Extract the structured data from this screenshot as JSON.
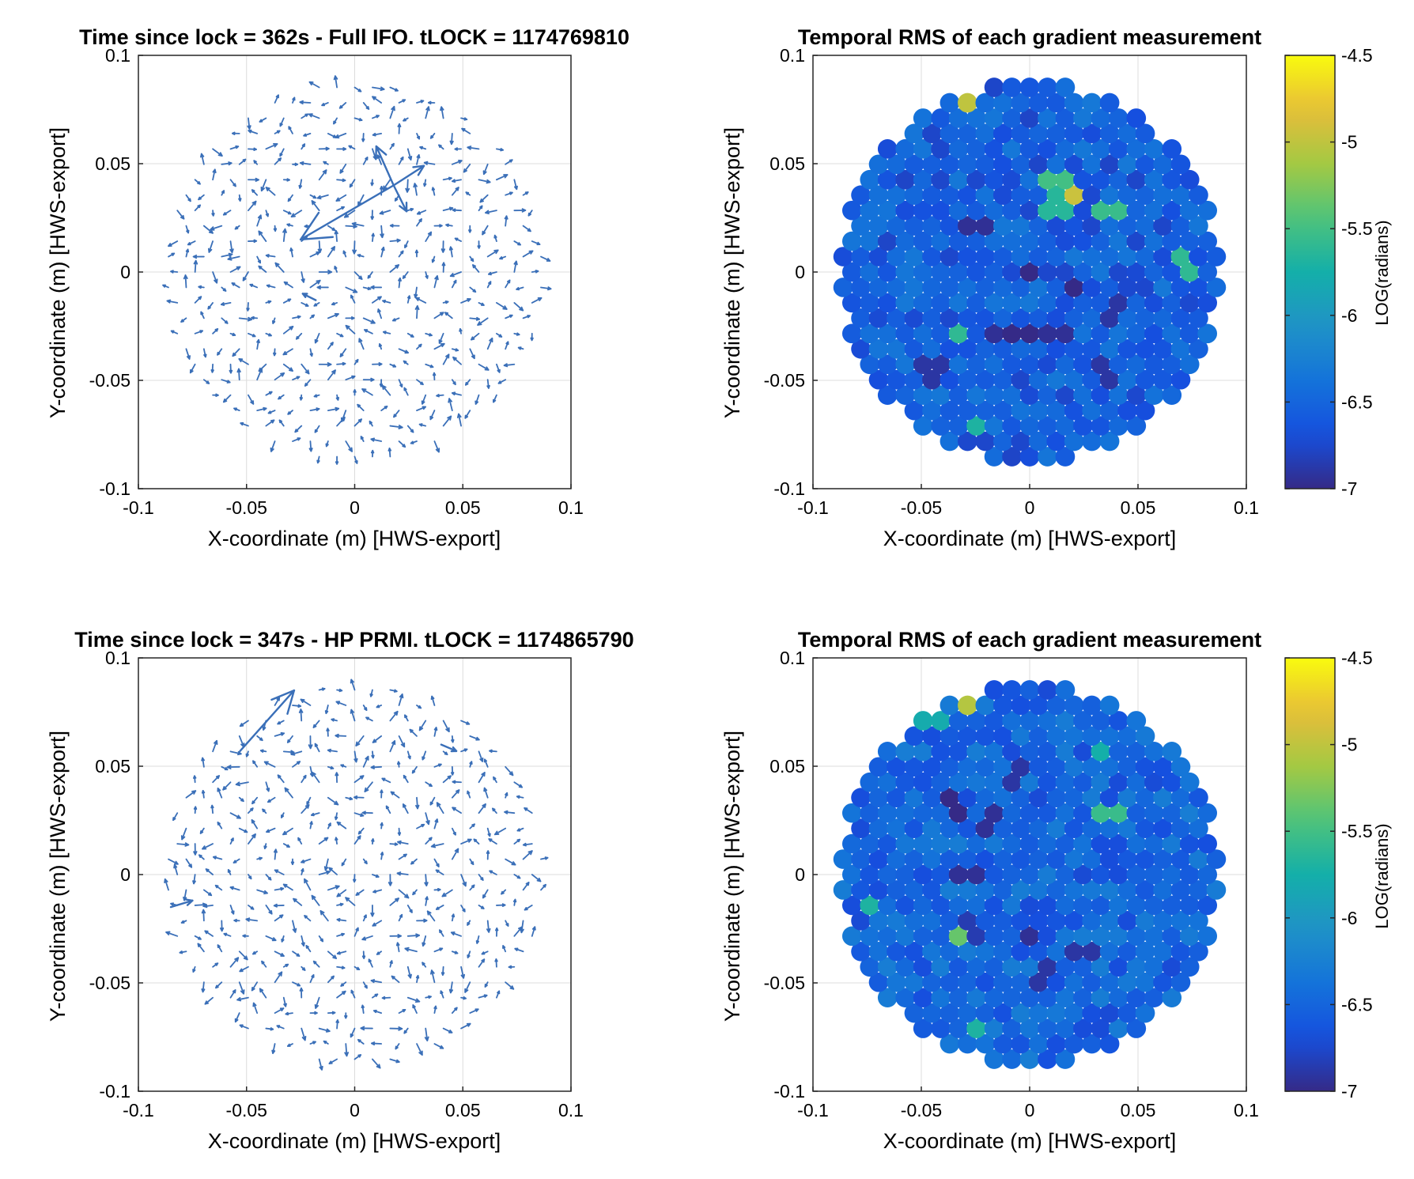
{
  "chart_data": [
    {
      "type": "quiver",
      "title": "Time since lock = 362s -  Full IFO. tLOCK = 1174769810",
      "xlabel": "X-coordinate (m) [HWS-export]",
      "ylabel": "Y-coordinate (m) [HWS-export]",
      "xlim": [
        -0.1,
        0.1
      ],
      "ylim": [
        -0.1,
        0.1
      ],
      "xticks": [
        "-0.1",
        "-0.05",
        "0",
        "0.05",
        "0.1"
      ],
      "yticks": [
        "0.1",
        "0.05",
        "0",
        "-0.05",
        "-0.1"
      ],
      "grid": true,
      "aperture_radius": 0.088,
      "grid_spacing": 0.0082,
      "arrow_color": "#3a6fb8",
      "large_arrows": [
        {
          "x": 0.018,
          "y": 0.04,
          "u": -0.043,
          "v": -0.025
        },
        {
          "x": 0.018,
          "y": 0.04,
          "u": -0.008,
          "v": 0.018
        },
        {
          "x": 0.018,
          "y": 0.04,
          "u": 0.014,
          "v": 0.009
        },
        {
          "x": 0.018,
          "y": 0.04,
          "u": 0.006,
          "v": -0.012
        },
        {
          "x": -0.018,
          "y": -0.013,
          "u": -0.006,
          "v": 0.003
        }
      ]
    },
    {
      "type": "heatmap-scatter",
      "title": "Temporal RMS of each gradient measurement",
      "xlabel": "X-coordinate (m) [HWS-export]",
      "ylabel": "Y-coordinate (m) [HWS-export]",
      "xlim": [
        -0.1,
        0.1
      ],
      "ylim": [
        -0.1,
        0.1
      ],
      "xticks": [
        "-0.1",
        "-0.05",
        "0",
        "0.05",
        "0.1"
      ],
      "yticks": [
        "0.1",
        "0.05",
        "0",
        "-0.05",
        "-0.1"
      ],
      "grid": true,
      "colorbar": {
        "label": "LOG(radians)",
        "clim": [
          -7,
          -4.5
        ],
        "ticks": [
          "-4.5",
          "-5",
          "-5.5",
          "-6",
          "-6.5",
          "-7"
        ],
        "colormap": "parula"
      },
      "background_level": -6.55,
      "highlights": [
        {
          "x": -0.028,
          "y": 0.081,
          "value": -5.0
        },
        {
          "x": 0.018,
          "y": 0.04,
          "value": -4.95
        },
        {
          "x": 0.012,
          "y": 0.044,
          "value": -5.5
        },
        {
          "x": 0.038,
          "y": 0.028,
          "value": -5.55
        },
        {
          "x": 0.071,
          "y": 0.002,
          "value": -5.6
        },
        {
          "x": -0.035,
          "y": -0.028,
          "value": -5.6
        },
        {
          "x": -0.025,
          "y": -0.074,
          "value": -5.7
        },
        {
          "x": 0.012,
          "y": 0.031,
          "value": -5.65
        },
        {
          "x": 0.018,
          "y": -0.008,
          "value": -7.0
        },
        {
          "x": -0.002,
          "y": -0.002,
          "value": -7.0
        },
        {
          "x": -0.025,
          "y": 0.022,
          "value": -6.95
        },
        {
          "x": -0.018,
          "y": -0.028,
          "value": -6.95
        },
        {
          "x": -0.005,
          "y": -0.03,
          "value": -7.0
        },
        {
          "x": 0.012,
          "y": -0.028,
          "value": -6.95
        },
        {
          "x": 0.038,
          "y": -0.018,
          "value": -6.9
        },
        {
          "x": 0.035,
          "y": -0.045,
          "value": -6.9
        },
        {
          "x": -0.045,
          "y": -0.045,
          "value": -6.9
        }
      ]
    },
    {
      "type": "quiver",
      "title": "Time since lock = 347s -  HP PRMI. tLOCK = 1174865790",
      "xlabel": "X-coordinate (m) [HWS-export]",
      "ylabel": "Y-coordinate (m) [HWS-export]",
      "xlim": [
        -0.1,
        0.1
      ],
      "ylim": [
        -0.1,
        0.1
      ],
      "xticks": [
        "-0.1",
        "-0.05",
        "0",
        "0.05",
        "0.1"
      ],
      "yticks": [
        "0.1",
        "0.05",
        "0",
        "-0.05",
        "-0.1"
      ],
      "grid": true,
      "aperture_radius": 0.088,
      "grid_spacing": 0.0082,
      "arrow_color": "#3a6fb8",
      "large_arrows": [
        {
          "x": -0.053,
          "y": 0.057,
          "u": 0.025,
          "v": 0.028
        },
        {
          "x": -0.085,
          "y": -0.015,
          "u": 0.01,
          "v": 0.003
        },
        {
          "x": 0.04,
          "y": 0.06,
          "u": 0.007,
          "v": -0.003
        }
      ]
    },
    {
      "type": "heatmap-scatter",
      "title": "Temporal RMS of each gradient measurement",
      "xlabel": "X-coordinate (m) [HWS-export]",
      "ylabel": "Y-coordinate (m) [HWS-export]",
      "xlim": [
        -0.1,
        0.1
      ],
      "ylim": [
        -0.1,
        0.1
      ],
      "xticks": [
        "-0.1",
        "-0.05",
        "0",
        "0.05",
        "0.1"
      ],
      "yticks": [
        "0.1",
        "0.05",
        "0",
        "-0.05",
        "-0.1"
      ],
      "grid": true,
      "colorbar": {
        "label": "LOG(radians)",
        "clim": [
          -7,
          -4.5
        ],
        "ticks": [
          "-4.5",
          "-5",
          "-5.5",
          "-6",
          "-6.5",
          "-7"
        ],
        "colormap": "parula"
      },
      "background_level": -6.5,
      "highlights": [
        {
          "x": -0.028,
          "y": 0.081,
          "value": -5.05
        },
        {
          "x": 0.038,
          "y": 0.028,
          "value": -5.55
        },
        {
          "x": -0.035,
          "y": -0.028,
          "value": -5.35
        },
        {
          "x": -0.075,
          "y": -0.012,
          "value": -5.7
        },
        {
          "x": -0.025,
          "y": -0.074,
          "value": -5.7
        },
        {
          "x": -0.045,
          "y": 0.07,
          "value": -5.8
        },
        {
          "x": 0.035,
          "y": 0.058,
          "value": -5.75
        },
        {
          "x": -0.035,
          "y": 0.032,
          "value": -7.0
        },
        {
          "x": -0.018,
          "y": 0.025,
          "value": -6.95
        },
        {
          "x": -0.03,
          "y": 0.0,
          "value": -6.95
        },
        {
          "x": -0.005,
          "y": 0.045,
          "value": -6.9
        },
        {
          "x": 0.0,
          "y": -0.03,
          "value": -6.95
        },
        {
          "x": 0.025,
          "y": -0.035,
          "value": -6.9
        },
        {
          "x": 0.005,
          "y": -0.045,
          "value": -6.9
        },
        {
          "x": -0.025,
          "y": -0.025,
          "value": -6.85
        }
      ]
    }
  ]
}
